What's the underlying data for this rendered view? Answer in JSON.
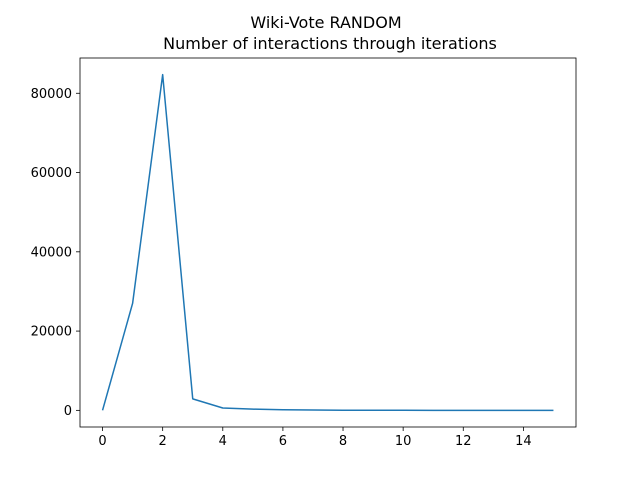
{
  "chart_data": {
    "type": "line",
    "title": "Wiki-Vote RANDOM",
    "subtitle": "Number of interactions through iterations",
    "xlabel": "",
    "ylabel": "",
    "xlim": [
      -0.75,
      15.75
    ],
    "ylim": [
      -4200,
      88900
    ],
    "xticks": [
      0,
      2,
      4,
      6,
      8,
      10,
      12,
      14
    ],
    "yticks": [
      0,
      20000,
      40000,
      60000,
      80000
    ],
    "grid": false,
    "series": [
      {
        "color": "#1f77b4",
        "x": [
          0,
          1,
          2,
          3,
          4,
          5,
          6,
          7,
          8,
          9,
          10,
          11,
          12,
          13,
          14,
          15
        ],
        "y": [
          0,
          27000,
          84700,
          2900,
          600,
          300,
          150,
          80,
          40,
          20,
          10,
          5,
          3,
          2,
          1,
          1
        ]
      }
    ]
  }
}
